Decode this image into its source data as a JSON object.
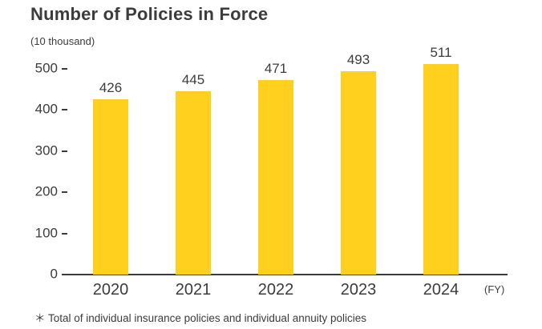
{
  "title": "Number of Policies in Force",
  "unit_label": "(10 thousand)",
  "fy_label": "(FY)",
  "footnote": "＊ Total of individual insurance policies and individual annuity policies",
  "colors": {
    "bar": "#FFD01E",
    "text": "#3C3C3C",
    "axis": "#3C3C3C"
  },
  "chart_data": {
    "type": "bar",
    "categories": [
      "2020",
      "2021",
      "2022",
      "2023",
      "2024"
    ],
    "values": [
      426,
      445,
      471,
      493,
      511
    ],
    "title": "Number of Policies in Force",
    "xlabel": "(FY)",
    "ylabel": "(10 thousand)",
    "ylim": [
      0,
      500
    ],
    "yticks": [
      0,
      100,
      200,
      300,
      400,
      500
    ],
    "grid": false,
    "legend": false,
    "bar_color": "#FFD01E",
    "value_labels": true
  }
}
